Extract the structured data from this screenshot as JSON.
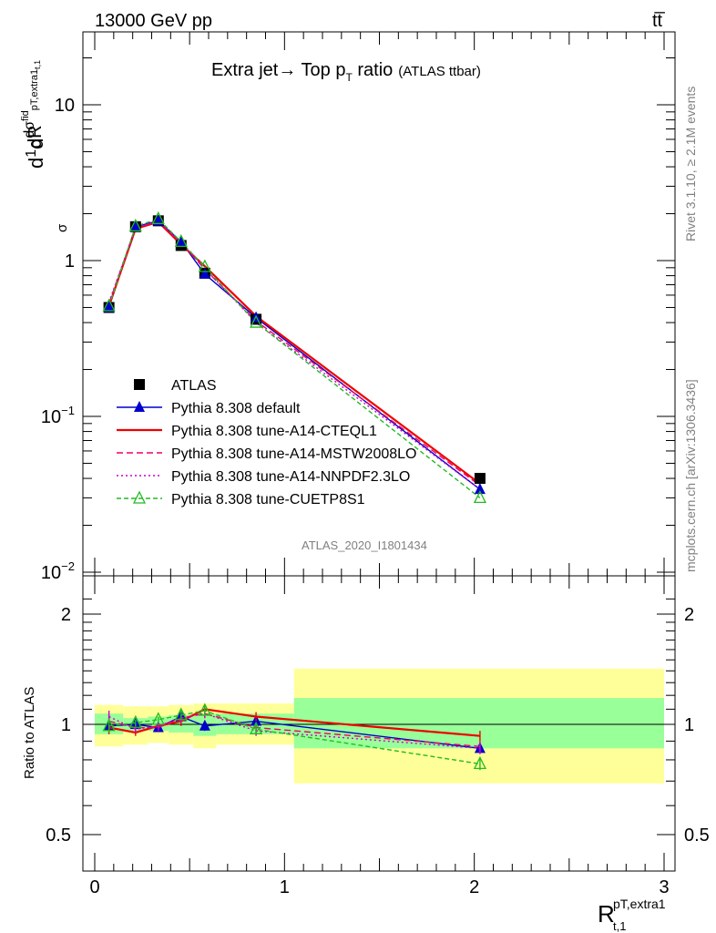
{
  "header": {
    "left": "13000 GeV pp",
    "right": "tt̅"
  },
  "side_labels": {
    "rivet": "Rivet 3.1.10, ≥ 2.1M events",
    "mcplots": "mcplots.cern.ch [arXiv:1306.3436]"
  },
  "watermark": "ATLAS_2020_I1801434",
  "chart_data": {
    "type": "line",
    "title": {
      "main": "Extra jet→ Top p",
      "sub": "T",
      "rest": " ratio",
      "note": "(ATLAS ttbar)"
    },
    "xlabel": {
      "base": "R",
      "sup": "pT,extra1",
      "sub": "t,1"
    },
    "ylabel_top": {
      "d": "d",
      "one": "1",
      "sigma": "σ",
      "dsigma": "dσ",
      "fid": "fid",
      "sub": "pT,extra1",
      "subsub": "t,1",
      "dR": "dR"
    },
    "ylabel_ratio": "Ratio to ATLAS",
    "xlim": [
      0,
      3
    ],
    "main_ylim": [
      0.01,
      30
    ],
    "main_yscale": "log",
    "ratio_ylim": [
      0.4,
      2.4
    ],
    "ratio_yscale": "log",
    "x_ticks": [
      "0",
      "1",
      "2",
      "3"
    ],
    "main_y_ticks": [
      "10",
      "1",
      "10−1",
      "10−2"
    ],
    "ratio_y_ticks": [
      "2",
      "1",
      "0.5"
    ],
    "x": [
      0.075,
      0.215,
      0.335,
      0.455,
      0.58,
      0.85,
      2.03
    ],
    "bin_edges": [
      0.0,
      0.15,
      0.28,
      0.39,
      0.52,
      0.64,
      1.05,
      3.0
    ],
    "bands": {
      "inner": [
        [
          0.94,
          1.07
        ],
        [
          0.96,
          1.04
        ],
        [
          0.96,
          1.05
        ],
        [
          0.95,
          1.06
        ],
        [
          0.93,
          1.07
        ],
        [
          0.94,
          1.07
        ],
        [
          0.86,
          1.18
        ]
      ],
      "outer": [
        [
          0.87,
          1.13
        ],
        [
          0.88,
          1.12
        ],
        [
          0.89,
          1.12
        ],
        [
          0.88,
          1.13
        ],
        [
          0.86,
          1.14
        ],
        [
          0.88,
          1.14
        ],
        [
          0.69,
          1.42
        ]
      ]
    },
    "series": [
      {
        "name": "ATLAS",
        "color": "#000000",
        "values": [
          0.5,
          1.65,
          1.8,
          1.25,
          0.83,
          0.42,
          0.04
        ],
        "ratio": [
          1,
          1,
          1,
          1,
          1,
          1,
          1
        ],
        "ratio_err": [
          0,
          0,
          0,
          0,
          0,
          0,
          0
        ]
      },
      {
        "name": "Pythia 8.308 default",
        "color": "#0000cc",
        "values": [
          0.5,
          1.65,
          1.8,
          1.32,
          0.82,
          0.43,
          0.034
        ],
        "ratio": [
          0.99,
          1.0,
          0.98,
          1.05,
          0.99,
          1.02,
          0.86
        ],
        "ratio_err": [
          0.04,
          0.02,
          0.02,
          0.03,
          0.03,
          0.03,
          0.03
        ]
      },
      {
        "name": "Pythia 8.308 tune-A14-CTEQL1",
        "color": "#ee0000",
        "values": [
          0.51,
          1.6,
          1.77,
          1.27,
          0.92,
          0.44,
          0.037
        ],
        "ratio": [
          0.98,
          0.95,
          0.99,
          1.02,
          1.1,
          1.05,
          0.93
        ],
        "ratio_err": [
          0.04,
          0.02,
          0.02,
          0.03,
          0.03,
          0.03,
          0.03
        ]
      },
      {
        "name": "Pythia 8.308 tune-A14-MSTW2008LO",
        "color": "#ee0066",
        "values": [
          0.53,
          1.63,
          1.78,
          1.3,
          0.88,
          0.41,
          0.036
        ],
        "ratio": [
          1.02,
          0.98,
          0.98,
          1.04,
          1.07,
          0.98,
          0.87
        ],
        "ratio_err": [
          0.04,
          0.02,
          0.02,
          0.03,
          0.03,
          0.03,
          0.03
        ]
      },
      {
        "name": "Pythia 8.308 tune-A14-NNPDF2.3LO",
        "color": "#cc00cc",
        "values": [
          0.54,
          1.62,
          1.79,
          1.3,
          0.89,
          0.4,
          0.034
        ],
        "ratio": [
          1.05,
          0.97,
          0.99,
          1.04,
          1.07,
          0.96,
          0.86
        ],
        "ratio_err": [
          0.04,
          0.02,
          0.02,
          0.03,
          0.03,
          0.03,
          0.03
        ]
      },
      {
        "name": "Pythia 8.308 tune-CUETP8S1",
        "color": "#22bb22",
        "values": [
          0.51,
          1.66,
          1.85,
          1.32,
          0.91,
          0.4,
          0.03
        ],
        "ratio": [
          0.99,
          1.01,
          1.03,
          1.06,
          1.09,
          0.97,
          0.78
        ],
        "ratio_err": [
          0.04,
          0.02,
          0.02,
          0.03,
          0.03,
          0.03,
          0.03
        ]
      }
    ],
    "legend_position": "center-left",
    "grid": false
  }
}
